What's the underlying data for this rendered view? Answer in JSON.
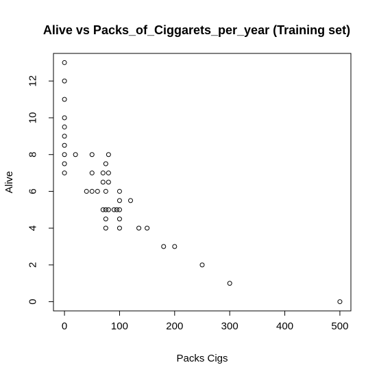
{
  "chart_data": {
    "type": "scatter",
    "title": "Alive vs Packs_of_Ciggarets_per_year (Training set)",
    "xlabel": "Packs Cigs",
    "ylabel": "Alive",
    "xlim": [
      -20,
      520
    ],
    "ylim": [
      -0.5,
      13.5
    ],
    "xticks": [
      0,
      100,
      200,
      300,
      400,
      500
    ],
    "yticks": [
      0,
      2,
      4,
      6,
      8,
      10,
      12
    ],
    "grid": false,
    "points": [
      {
        "x": 0,
        "y": 13
      },
      {
        "x": 0,
        "y": 12
      },
      {
        "x": 0,
        "y": 11
      },
      {
        "x": 0,
        "y": 10
      },
      {
        "x": 0,
        "y": 9.5
      },
      {
        "x": 0,
        "y": 9
      },
      {
        "x": 0,
        "y": 8.5
      },
      {
        "x": 0,
        "y": 8
      },
      {
        "x": 0,
        "y": 7.5
      },
      {
        "x": 0,
        "y": 7
      },
      {
        "x": 20,
        "y": 8
      },
      {
        "x": 50,
        "y": 8
      },
      {
        "x": 80,
        "y": 8
      },
      {
        "x": 75,
        "y": 7.5
      },
      {
        "x": 50,
        "y": 7
      },
      {
        "x": 70,
        "y": 7
      },
      {
        "x": 80,
        "y": 7
      },
      {
        "x": 70,
        "y": 6.5
      },
      {
        "x": 80,
        "y": 6.5
      },
      {
        "x": 40,
        "y": 6
      },
      {
        "x": 50,
        "y": 6
      },
      {
        "x": 60,
        "y": 6
      },
      {
        "x": 75,
        "y": 6
      },
      {
        "x": 100,
        "y": 6
      },
      {
        "x": 100,
        "y": 5.5
      },
      {
        "x": 120,
        "y": 5.5
      },
      {
        "x": 70,
        "y": 5
      },
      {
        "x": 75,
        "y": 5
      },
      {
        "x": 80,
        "y": 5
      },
      {
        "x": 90,
        "y": 5
      },
      {
        "x": 95,
        "y": 5
      },
      {
        "x": 100,
        "y": 5
      },
      {
        "x": 75,
        "y": 4.5
      },
      {
        "x": 100,
        "y": 4.5
      },
      {
        "x": 75,
        "y": 4
      },
      {
        "x": 100,
        "y": 4
      },
      {
        "x": 135,
        "y": 4
      },
      {
        "x": 150,
        "y": 4
      },
      {
        "x": 180,
        "y": 3
      },
      {
        "x": 200,
        "y": 3
      },
      {
        "x": 250,
        "y": 2
      },
      {
        "x": 300,
        "y": 1
      },
      {
        "x": 500,
        "y": 0
      }
    ]
  }
}
